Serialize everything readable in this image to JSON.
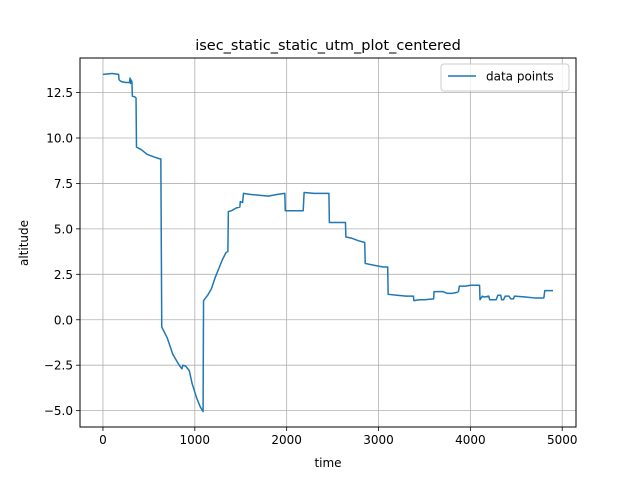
{
  "chart_data": {
    "type": "line",
    "title": "isec_static_static_utm_plot_centered",
    "xlabel": "time",
    "ylabel": "altitude",
    "xlim": [
      -250,
      5150
    ],
    "ylim": [
      -5.9,
      14.4
    ],
    "grid": true,
    "legend_position": "top-right",
    "x_ticks": [
      {
        "value": 0,
        "label": "0"
      },
      {
        "value": 1000,
        "label": "1000"
      },
      {
        "value": 2000,
        "label": "2000"
      },
      {
        "value": 3000,
        "label": "3000"
      },
      {
        "value": 4000,
        "label": "4000"
      },
      {
        "value": 5000,
        "label": "5000"
      }
    ],
    "y_ticks": [
      {
        "value": -5.0,
        "label": "−5.0"
      },
      {
        "value": -2.5,
        "label": "−2.5"
      },
      {
        "value": 0.0,
        "label": "0.0"
      },
      {
        "value": 2.5,
        "label": "2.5"
      },
      {
        "value": 5.0,
        "label": "5.0"
      },
      {
        "value": 7.5,
        "label": "7.5"
      },
      {
        "value": 10.0,
        "label": "10.0"
      },
      {
        "value": 12.5,
        "label": "12.5"
      }
    ],
    "series": [
      {
        "name": "data points",
        "color": "#1f77b4",
        "points": [
          [
            0,
            13.5
          ],
          [
            100,
            13.55
          ],
          [
            170,
            13.5
          ],
          [
            175,
            13.2
          ],
          [
            200,
            13.1
          ],
          [
            250,
            13.05
          ],
          [
            290,
            13.05
          ],
          [
            295,
            13.3
          ],
          [
            300,
            13.0
          ],
          [
            305,
            13.2
          ],
          [
            315,
            13.1
          ],
          [
            320,
            12.3
          ],
          [
            350,
            12.25
          ],
          [
            360,
            12.2
          ],
          [
            365,
            9.5
          ],
          [
            420,
            9.35
          ],
          [
            480,
            9.1
          ],
          [
            560,
            8.95
          ],
          [
            620,
            8.85
          ],
          [
            630,
            8.85
          ],
          [
            640,
            -0.4
          ],
          [
            700,
            -1.0
          ],
          [
            760,
            -1.9
          ],
          [
            830,
            -2.5
          ],
          [
            860,
            -2.7
          ],
          [
            870,
            -2.5
          ],
          [
            900,
            -2.55
          ],
          [
            940,
            -2.8
          ],
          [
            970,
            -3.5
          ],
          [
            1020,
            -4.3
          ],
          [
            1060,
            -4.8
          ],
          [
            1090,
            -5.05
          ],
          [
            1095,
            1.05
          ],
          [
            1140,
            1.35
          ],
          [
            1180,
            1.7
          ],
          [
            1220,
            2.3
          ],
          [
            1260,
            2.8
          ],
          [
            1300,
            3.3
          ],
          [
            1340,
            3.7
          ],
          [
            1360,
            3.75
          ],
          [
            1365,
            5.95
          ],
          [
            1400,
            6.0
          ],
          [
            1450,
            6.15
          ],
          [
            1490,
            6.2
          ],
          [
            1495,
            6.5
          ],
          [
            1520,
            6.45
          ],
          [
            1530,
            6.95
          ],
          [
            1600,
            6.9
          ],
          [
            1700,
            6.85
          ],
          [
            1800,
            6.8
          ],
          [
            1900,
            6.9
          ],
          [
            1980,
            6.95
          ],
          [
            1985,
            6.0
          ],
          [
            2100,
            6.0
          ],
          [
            2180,
            6.0
          ],
          [
            2190,
            7.0
          ],
          [
            2300,
            6.95
          ],
          [
            2400,
            6.95
          ],
          [
            2460,
            6.95
          ],
          [
            2465,
            5.35
          ],
          [
            2550,
            5.35
          ],
          [
            2640,
            5.35
          ],
          [
            2645,
            4.55
          ],
          [
            2700,
            4.5
          ],
          [
            2780,
            4.35
          ],
          [
            2850,
            4.25
          ],
          [
            2855,
            3.1
          ],
          [
            2900,
            3.05
          ],
          [
            2950,
            3.0
          ],
          [
            3000,
            2.95
          ],
          [
            3050,
            2.9
          ],
          [
            3100,
            2.9
          ],
          [
            3105,
            1.4
          ],
          [
            3200,
            1.35
          ],
          [
            3300,
            1.3
          ],
          [
            3380,
            1.3
          ],
          [
            3385,
            1.05
          ],
          [
            3450,
            1.1
          ],
          [
            3500,
            1.1
          ],
          [
            3600,
            1.15
          ],
          [
            3605,
            1.55
          ],
          [
            3700,
            1.55
          ],
          [
            3750,
            1.45
          ],
          [
            3800,
            1.45
          ],
          [
            3850,
            1.5
          ],
          [
            3870,
            1.55
          ],
          [
            3880,
            1.85
          ],
          [
            3950,
            1.85
          ],
          [
            4000,
            1.9
          ],
          [
            4050,
            1.9
          ],
          [
            4100,
            1.9
          ],
          [
            4105,
            1.1
          ],
          [
            4130,
            1.3
          ],
          [
            4150,
            1.25
          ],
          [
            4200,
            1.3
          ],
          [
            4210,
            1.1
          ],
          [
            4250,
            1.1
          ],
          [
            4280,
            1.1
          ],
          [
            4300,
            1.35
          ],
          [
            4330,
            1.35
          ],
          [
            4340,
            1.1
          ],
          [
            4360,
            1.1
          ],
          [
            4380,
            1.3
          ],
          [
            4420,
            1.3
          ],
          [
            4440,
            1.15
          ],
          [
            4470,
            1.15
          ],
          [
            4480,
            1.3
          ],
          [
            4600,
            1.25
          ],
          [
            4700,
            1.2
          ],
          [
            4800,
            1.2
          ],
          [
            4810,
            1.6
          ],
          [
            4900,
            1.6
          ]
        ]
      }
    ]
  }
}
